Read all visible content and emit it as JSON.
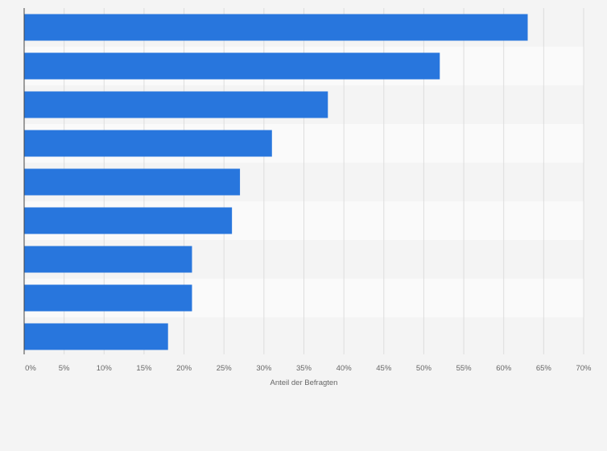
{
  "chart_data": {
    "type": "bar",
    "orientation": "horizontal",
    "categories": [
      "",
      "",
      "",
      "",
      "",
      "",
      "",
      "",
      ""
    ],
    "values": [
      63,
      52,
      38,
      31,
      27,
      26,
      21,
      21,
      18
    ],
    "xlabel": "Anteil der Befragten",
    "ylabel": "",
    "xlim": [
      0,
      70
    ],
    "xticks": [
      0,
      5,
      10,
      15,
      20,
      25,
      30,
      35,
      40,
      45,
      50,
      55,
      60,
      65,
      70
    ],
    "tick_labels": [
      "0%",
      "5%",
      "10%",
      "15%",
      "20%",
      "25%",
      "30%",
      "35%",
      "40%",
      "45%",
      "50%",
      "55%",
      "60%",
      "65%",
      "70%"
    ],
    "grid": true,
    "legend": "none"
  },
  "colors": {
    "bar": "#2876dd",
    "page_background": "#f4f4f4",
    "row_band_even": "#f4f4f4",
    "row_band_odd": "#fafafa",
    "grid": "#dddddd",
    "axis": "#444444",
    "tick_text": "#666666",
    "label_text": "#666666"
  }
}
